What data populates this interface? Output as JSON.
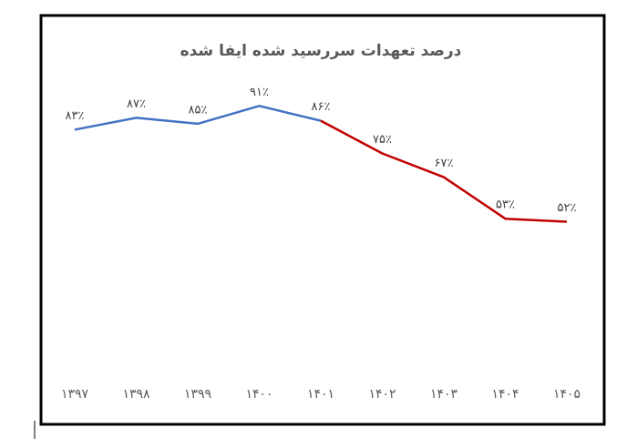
{
  "chart_data": {
    "type": "line",
    "title": "درصد تعهدات سررسید شده ایفا شده",
    "categories": [
      "۱۳۹۷",
      "۱۳۹۸",
      "۱۳۹۹",
      "۱۴۰۰",
      "۱۴۰۱",
      "۱۴۰۲",
      "۱۴۰۳",
      "۱۴۰۴",
      "۱۴۰۵"
    ],
    "series": [
      {
        "color": "#4472c4",
        "values": [
          83,
          87,
          85,
          91,
          86,
          null,
          null,
          null,
          null
        ],
        "value_labels": [
          "۸۳٪",
          "۸۷٪",
          "۸۵٪",
          "۹۱٪",
          "۸۶٪",
          null,
          null,
          null,
          null
        ]
      },
      {
        "color": "#c00000",
        "values": [
          null,
          null,
          null,
          null,
          86,
          75,
          67,
          53,
          52
        ],
        "value_labels": [
          null,
          null,
          null,
          null,
          null,
          "۷۵٪",
          "۶۷٪",
          "۵۳٪",
          "۵۲٪"
        ]
      }
    ],
    "ylim": [
      0,
      100
    ]
  }
}
